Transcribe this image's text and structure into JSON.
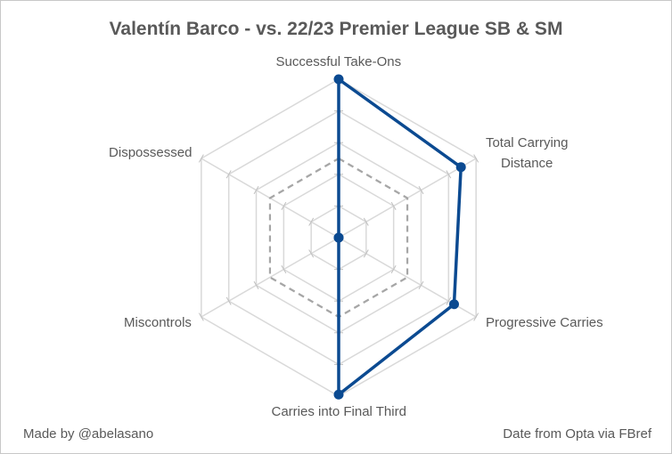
{
  "chart_data": {
    "type": "radar",
    "title": "Valentín Barco - vs. 22/23 Premier League SB & SM",
    "categories": [
      "Successful Take-Ons",
      "Total Carrying\nDistance",
      "Progressive Carries",
      "Carries into Final Third",
      "Miscontrols",
      "Dispossessed"
    ],
    "series": [
      {
        "color": "#0b4a91",
        "values": [
          100,
          89,
          84,
          99,
          0,
          0
        ]
      }
    ],
    "rlim": [
      0,
      100
    ],
    "rticks": [
      20,
      40,
      60,
      80,
      100
    ],
    "reference": 50,
    "footer_left": "Made by @abelasano",
    "footer_right": "Date from Opta via FBref"
  }
}
